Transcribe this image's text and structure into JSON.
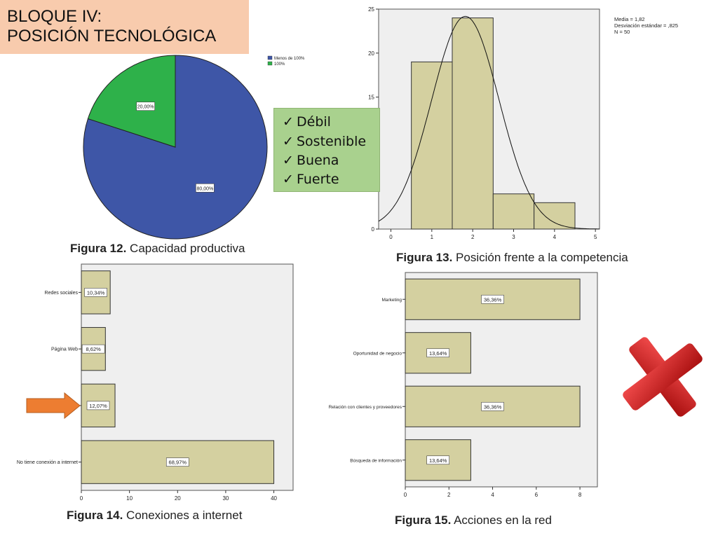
{
  "title": {
    "line1": "BLOQUE IV:",
    "line2": "POSICIÓN TECNOLÓGICA"
  },
  "checklist": {
    "check_icon": "check-icon",
    "items": [
      "Débil",
      "Sostenible",
      "Buena",
      "Fuerte"
    ]
  },
  "colors": {
    "title_bg": "#f8cbad",
    "checklist_bg": "#a9d18e",
    "pie_blue": "#3e56a7",
    "pie_green": "#2eb14a",
    "bar_fill": "#d4d0a0",
    "plot_bg": "#efefef",
    "arrow": "#ed7d31",
    "cross": "#d42020"
  },
  "captions": {
    "fig12": {
      "label": "Figura 12.",
      "text": " Capacidad productiva"
    },
    "fig13": {
      "label": "Figura 13.",
      "text": " Posición frente a la competencia"
    },
    "fig14": {
      "label": "Figura 14.",
      "text": " Conexiones a internet"
    },
    "fig15": {
      "label": "Figura 15.",
      "text": " Acciones en la red"
    }
  },
  "chart_data": [
    {
      "id": "fig12",
      "type": "pie",
      "labels": [
        "Menos de 100%",
        "100%"
      ],
      "values": [
        80.0,
        20.0
      ],
      "data_labels": [
        "80,00%",
        "20,00%"
      ],
      "colors": [
        "#3e56a7",
        "#2eb14a"
      ],
      "legend": "top-right"
    },
    {
      "id": "fig13",
      "type": "bar",
      "subtype": "histogram",
      "bins": [
        [
          0.5,
          1.5
        ],
        [
          1.5,
          2.5
        ],
        [
          2.5,
          3.5
        ],
        [
          3.5,
          4.5
        ]
      ],
      "values": [
        19,
        24,
        4,
        3
      ],
      "xlim": [
        -0.3,
        5.1
      ],
      "ylim": [
        0,
        25
      ],
      "xticks": [
        "0",
        "1",
        "2",
        "3",
        "4",
        "5"
      ],
      "yticks": [
        "0",
        "5",
        "10",
        "15",
        "20",
        "25"
      ],
      "normal_curve": {
        "mean": 1.82,
        "sd": 0.825,
        "n": 50
      },
      "stats": [
        "Media = 1,82",
        "Desviación estándar = ,825",
        "N = 50"
      ]
    },
    {
      "id": "fig14",
      "type": "bar",
      "orientation": "horizontal",
      "categories": [
        "Redes sociales",
        "Página Web",
        "",
        "No tiene conexión a internet"
      ],
      "values": [
        6,
        5,
        7,
        40
      ],
      "data_labels": [
        "10,34%",
        "8,62%",
        "12,07%",
        "68,97%"
      ],
      "xlim": [
        0,
        44
      ],
      "xticks": [
        "0",
        "10",
        "20",
        "30",
        "40"
      ]
    },
    {
      "id": "fig15",
      "type": "bar",
      "orientation": "horizontal",
      "categories": [
        "Marketing",
        "Oportunidad de negocio",
        "Relación con clientes y proveedores",
        "Búsqueda de información"
      ],
      "values": [
        8,
        3,
        8,
        3
      ],
      "data_labels": [
        "36,36%",
        "13,64%",
        "36,36%",
        "13,64%"
      ],
      "xlim": [
        0,
        8.8
      ],
      "xticks": [
        "0",
        "2",
        "4",
        "6",
        "8"
      ]
    }
  ]
}
